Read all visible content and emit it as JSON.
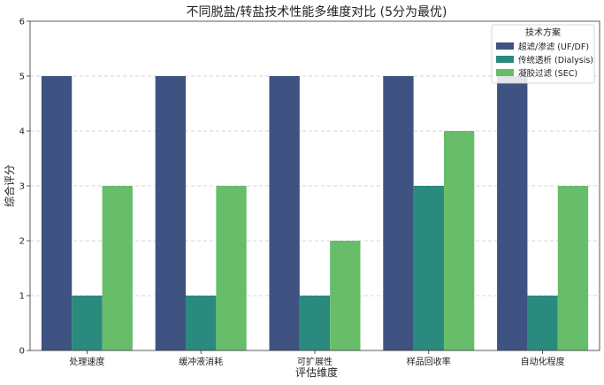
{
  "chart_data": {
    "type": "bar",
    "title": "不同脱盐/转盐技术性能多维度对比 (5分为最优)",
    "xlabel": "评估维度",
    "ylabel": "综合评分",
    "categories": [
      "处理速度",
      "缓冲液消耗",
      "可扩展性",
      "样品回收率",
      "自动化程度"
    ],
    "ylim": [
      0,
      6
    ],
    "yticks": [
      0,
      1,
      2,
      3,
      4,
      5,
      6
    ],
    "grid": "horizontal dashed",
    "legend": {
      "title": "技术方案",
      "placement": "top-right"
    },
    "series": [
      {
        "name": "超滤/渗滤 (UF/DF)",
        "color": "#3e5381",
        "values": [
          5,
          5,
          5,
          5,
          5
        ]
      },
      {
        "name": "传统透析 (Dialysis)",
        "color": "#2b8a7e",
        "values": [
          1,
          1,
          1,
          3,
          1
        ]
      },
      {
        "name": "凝胶过滤 (SEC)",
        "color": "#67bd6a",
        "values": [
          3,
          3,
          2,
          4,
          3
        ]
      }
    ]
  }
}
